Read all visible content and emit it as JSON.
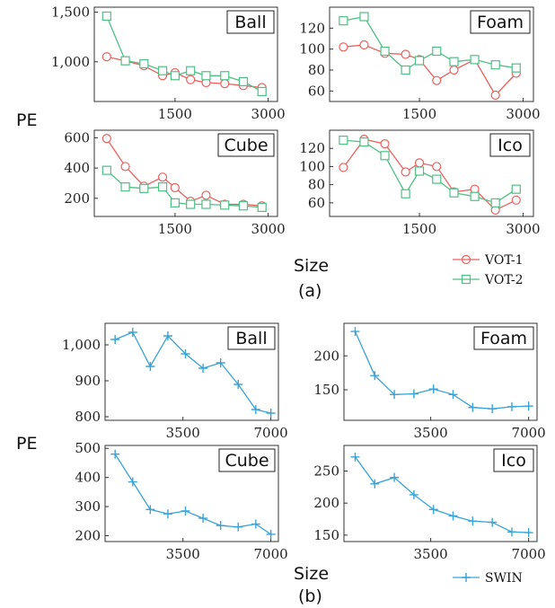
{
  "figure": {
    "ylabel": "PE",
    "xlabel": "Size",
    "subfig_a": "(a)",
    "subfig_b": "(b)",
    "colors": {
      "vot1": "#e8605c",
      "vot2": "#4fbf85",
      "swin": "#3aa3d6"
    }
  },
  "chart_data": [
    {
      "type": "line",
      "group": "a",
      "title": "Ball",
      "xlabel": "",
      "ylabel": "PE",
      "xlim": [
        200,
        3150
      ],
      "ylim": [
        600,
        1550
      ],
      "xticks": [
        1500,
        3000
      ],
      "yticks": [
        1000,
        1500
      ],
      "xtick_labels": [
        "1500",
        "3000"
      ],
      "ytick_labels": [
        "1,000",
        "1,500"
      ],
      "x": [
        400,
        700,
        1000,
        1300,
        1500,
        1750,
        2000,
        2300,
        2600,
        2900
      ],
      "series": [
        {
          "name": "VOT-1",
          "values": [
            1050,
            1010,
            960,
            860,
            890,
            820,
            790,
            780,
            760,
            740
          ]
        },
        {
          "name": "VOT-2",
          "values": [
            1460,
            1010,
            980,
            910,
            860,
            910,
            860,
            860,
            800,
            700
          ]
        }
      ]
    },
    {
      "type": "line",
      "group": "a",
      "title": "Foam",
      "xlabel": "",
      "ylabel": "",
      "xlim": [
        200,
        3150
      ],
      "ylim": [
        50,
        140
      ],
      "xticks": [
        1500,
        3000
      ],
      "yticks": [
        60,
        80,
        100,
        120
      ],
      "xtick_labels": [
        "1500",
        "3000"
      ],
      "ytick_labels": [
        "60",
        "80",
        "100",
        "120"
      ],
      "x": [
        400,
        700,
        1000,
        1300,
        1500,
        1750,
        2000,
        2300,
        2600,
        2900
      ],
      "series": [
        {
          "name": "VOT-1",
          "values": [
            102,
            104,
            96,
            95,
            90,
            70,
            80,
            90,
            56,
            77
          ]
        },
        {
          "name": "VOT-2",
          "values": [
            127,
            131,
            98,
            80,
            89,
            98,
            88,
            90,
            85,
            82
          ]
        }
      ]
    },
    {
      "type": "line",
      "group": "a",
      "title": "Cube",
      "xlabel": "",
      "ylabel": "PE",
      "xlim": [
        200,
        3150
      ],
      "ylim": [
        80,
        650
      ],
      "xticks": [
        1500,
        3000
      ],
      "yticks": [
        200,
        400,
        600
      ],
      "xtick_labels": [
        "1500",
        "3000"
      ],
      "ytick_labels": [
        "200",
        "400",
        "600"
      ],
      "x": [
        400,
        700,
        1000,
        1300,
        1500,
        1750,
        2000,
        2300,
        2600,
        2900
      ],
      "series": [
        {
          "name": "VOT-1",
          "values": [
            595,
            410,
            280,
            340,
            270,
            180,
            220,
            160,
            160,
            150
          ]
        },
        {
          "name": "VOT-2",
          "values": [
            385,
            275,
            265,
            275,
            170,
            160,
            160,
            155,
            150,
            140
          ]
        }
      ]
    },
    {
      "type": "line",
      "group": "a",
      "title": "Ico",
      "xlabel": "",
      "ylabel": "",
      "xlim": [
        200,
        3150
      ],
      "ylim": [
        45,
        140
      ],
      "xticks": [
        1500,
        3000
      ],
      "yticks": [
        60,
        80,
        100,
        120
      ],
      "xtick_labels": [
        "1500",
        "3000"
      ],
      "ytick_labels": [
        "60",
        "80",
        "100",
        "120"
      ],
      "x": [
        400,
        700,
        1000,
        1300,
        1500,
        1750,
        2000,
        2300,
        2600,
        2900
      ],
      "series": [
        {
          "name": "VOT-1",
          "values": [
            99,
            130,
            125,
            94,
            104,
            100,
            72,
            75,
            52,
            63
          ]
        },
        {
          "name": "VOT-2",
          "values": [
            129,
            127,
            112,
            70,
            95,
            86,
            71,
            67,
            60,
            75
          ]
        }
      ]
    },
    {
      "type": "line",
      "group": "b",
      "title": "Ball",
      "xlabel": "",
      "ylabel": "PE",
      "xlim": [
        400,
        7300
      ],
      "ylim": [
        790,
        1060
      ],
      "xticks": [
        3500,
        7000
      ],
      "yticks": [
        800,
        900,
        1000
      ],
      "xtick_labels": [
        "3500",
        "7000"
      ],
      "ytick_labels": [
        "800",
        "900",
        "1,000"
      ],
      "x": [
        800,
        1500,
        2200,
        2900,
        3600,
        4300,
        5000,
        5700,
        6400,
        7000
      ],
      "series": [
        {
          "name": "SWIN",
          "values": [
            1015,
            1035,
            940,
            1025,
            975,
            935,
            950,
            890,
            820,
            810
          ]
        }
      ]
    },
    {
      "type": "line",
      "group": "b",
      "title": "Foam",
      "xlabel": "",
      "ylabel": "",
      "xlim": [
        400,
        7300
      ],
      "ylim": [
        105,
        248
      ],
      "xticks": [
        3500,
        7000
      ],
      "yticks": [
        150,
        200
      ],
      "xtick_labels": [
        "3500",
        "7000"
      ],
      "ytick_labels": [
        "150",
        "200"
      ],
      "x": [
        800,
        1500,
        2200,
        2900,
        3600,
        4300,
        5000,
        5700,
        6400,
        7000
      ],
      "series": [
        {
          "name": "SWIN",
          "values": [
            236,
            171,
            143,
            144,
            151,
            143,
            124,
            122,
            125,
            126
          ]
        }
      ]
    },
    {
      "type": "line",
      "group": "b",
      "title": "Cube",
      "xlabel": "",
      "ylabel": "PE",
      "xlim": [
        400,
        7300
      ],
      "ylim": [
        180,
        510
      ],
      "xticks": [
        3500,
        7000
      ],
      "yticks": [
        200,
        300,
        400,
        500
      ],
      "xtick_labels": [
        "3500",
        "7000"
      ],
      "ytick_labels": [
        "200",
        "300",
        "400",
        "500"
      ],
      "x": [
        800,
        1500,
        2200,
        2900,
        3600,
        4300,
        5000,
        5700,
        6400,
        7000
      ],
      "series": [
        {
          "name": "SWIN",
          "values": [
            480,
            385,
            290,
            275,
            285,
            260,
            235,
            230,
            240,
            205
          ]
        }
      ]
    },
    {
      "type": "line",
      "group": "b",
      "title": "Ico",
      "xlabel": "",
      "ylabel": "",
      "xlim": [
        400,
        7300
      ],
      "ylim": [
        140,
        290
      ],
      "xticks": [
        3500,
        7000
      ],
      "yticks": [
        150,
        200,
        250
      ],
      "xtick_labels": [
        "3500",
        "7000"
      ],
      "ytick_labels": [
        "150",
        "200",
        "250"
      ],
      "x": [
        800,
        1500,
        2200,
        2900,
        3600,
        4300,
        5000,
        5700,
        6400,
        7000
      ],
      "series": [
        {
          "name": "SWIN",
          "values": [
            272,
            230,
            240,
            213,
            190,
            180,
            172,
            170,
            155,
            154
          ]
        }
      ]
    }
  ]
}
